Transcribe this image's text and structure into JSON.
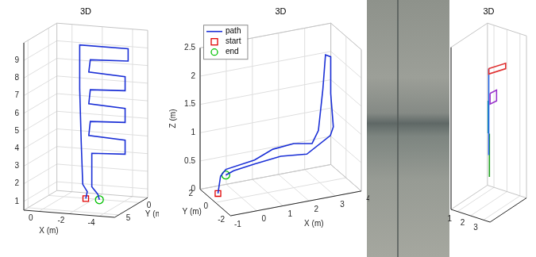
{
  "chart_data": [
    {
      "type": "line3d",
      "title": "3D",
      "x_label": "X (m)",
      "y_label": "Y (m)",
      "xlim": [
        -5,
        1
      ],
      "ylim": [
        -2,
        6
      ],
      "zlim": [
        0.5,
        10
      ],
      "xticks": [
        -4,
        -2,
        0
      ],
      "yticks": [
        0,
        5
      ],
      "zticks": [
        1,
        2,
        3,
        4,
        5,
        6,
        7,
        8,
        9
      ],
      "grid": true,
      "series": [
        {
          "color": "#1a2fd6",
          "line_style": "solid",
          "x": [
            -2.0,
            -2.1,
            -1.8,
            -1.7,
            -1.6,
            -1.6,
            -4.8,
            -4.8,
            -2.3,
            -2.2,
            -4.6,
            -4.6,
            -2.3,
            -2.2,
            -4.6,
            -4.6,
            -2.3,
            -2.2,
            -4.6,
            -4.6,
            -2.4,
            -2.4,
            -2.8,
            -2.9
          ],
          "y": [
            2,
            2,
            2,
            2,
            2,
            2,
            2,
            2,
            2,
            2,
            2,
            2,
            2,
            2,
            2,
            2,
            2,
            2,
            2,
            2,
            2,
            2,
            2,
            2
          ],
          "z": [
            0.8,
            1.2,
            1.6,
            4.0,
            7.0,
            9.5,
            9.5,
            8.8,
            8.7,
            8.0,
            7.9,
            7.1,
            7.0,
            6.2,
            6.1,
            5.3,
            5.2,
            4.4,
            4.3,
            3.5,
            3.4,
            1.5,
            1.1,
            0.8
          ]
        },
        {
          "color": "#e00000",
          "marker": "square",
          "line_style": "none",
          "x": [
            -2.0
          ],
          "y": [
            2
          ],
          "z": [
            0.8
          ]
        },
        {
          "color": "#00c000",
          "marker": "circle",
          "line_style": "none",
          "x": [
            -2.9
          ],
          "y": [
            2
          ],
          "z": [
            0.8
          ]
        }
      ]
    },
    {
      "type": "line3d",
      "title": "3D",
      "x_label": "X (m)",
      "y_label": "Y (m)",
      "z_label": "Z (m)",
      "xlim": [
        -1,
        4
      ],
      "ylim": [
        -2,
        2
      ],
      "zlim": [
        0,
        2.5
      ],
      "xticks": [
        -1,
        0,
        1,
        2,
        3,
        4
      ],
      "yticks": [
        -2,
        0,
        2
      ],
      "zticks": [
        0,
        0.5,
        1,
        1.5,
        2,
        2.5
      ],
      "grid": true,
      "legend": "top-left",
      "series": [
        {
          "name": "path",
          "color": "#1a2fd6",
          "line_style": "solid",
          "x": [
            -0.9,
            -0.8,
            -0.6,
            0.5,
            1.2,
            2.0,
            2.7,
            3.0,
            3.2,
            3.3,
            3.5,
            3.5,
            3.6,
            3.4,
            2.5,
            1.5,
            0.5,
            -0.3,
            -0.6
          ],
          "y": [
            0,
            0,
            0,
            0,
            0,
            0,
            0,
            0.2,
            0.3,
            0.3,
            0.3,
            0.3,
            0.3,
            0,
            0,
            0,
            0,
            0,
            0
          ],
          "z": [
            0.15,
            0.45,
            0.55,
            0.62,
            0.75,
            0.78,
            0.72,
            0.9,
            1.6,
            2.2,
            2.15,
            1.5,
            0.9,
            0.8,
            0.55,
            0.6,
            0.55,
            0.5,
            0.45
          ]
        },
        {
          "name": "start",
          "color": "#e00000",
          "marker": "square",
          "line_style": "none",
          "x": [
            -0.9
          ],
          "y": [
            0
          ],
          "z": [
            0.15
          ]
        },
        {
          "name": "end",
          "color": "#00c000",
          "marker": "circle",
          "line_style": "none",
          "x": [
            -0.6
          ],
          "y": [
            0
          ],
          "z": [
            0.45
          ]
        }
      ]
    },
    {
      "type": "line3d",
      "title": "3D",
      "xlim": [
        0.5,
        3.5
      ],
      "ylim": [
        0,
        4
      ],
      "zlim": [
        0,
        3
      ],
      "xticks": [
        1,
        2,
        3
      ],
      "grid": true,
      "series": [
        {
          "color": "#e03030",
          "line_style": "solid",
          "x": [
            2.0,
            3.3,
            3.3,
            2.0,
            2.0
          ],
          "y": [
            2,
            2,
            2,
            2,
            2
          ],
          "z": [
            2.5,
            2.7,
            2.6,
            2.4,
            2.5
          ]
        },
        {
          "color": "#9933cc",
          "line_style": "solid",
          "x": [
            2.1,
            2.6,
            2.6,
            2.1,
            2.1
          ],
          "y": [
            2,
            2,
            2,
            2,
            2
          ],
          "z": [
            2.05,
            2.15,
            1.95,
            1.85,
            2.05
          ]
        },
        {
          "color": "#2060e0",
          "line_style": "solid",
          "x": [
            2.0,
            2.0
          ],
          "y": [
            2,
            2
          ],
          "z": [
            0.9,
            2.5
          ]
        },
        {
          "color": "#20b0b0",
          "line_style": "solid",
          "x": [
            1.95,
            1.95
          ],
          "y": [
            2,
            2
          ],
          "z": [
            1.3,
            1.9
          ]
        },
        {
          "color": "#20a020",
          "line_style": "solid",
          "x": [
            2.05,
            2.05
          ],
          "y": [
            2,
            2
          ],
          "z": [
            0.5,
            1.3
          ]
        }
      ]
    }
  ]
}
